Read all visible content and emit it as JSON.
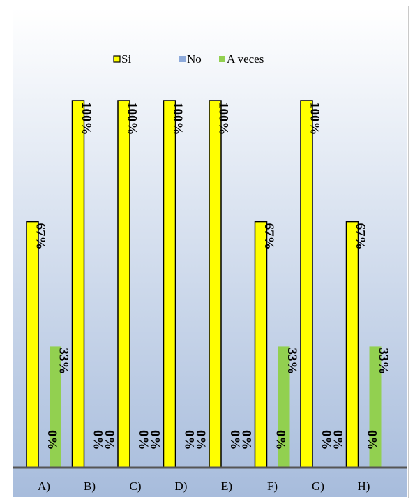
{
  "chart_data": {
    "type": "bar",
    "categories": [
      "A)",
      "B)",
      "C)",
      "D)",
      "E)",
      "F)",
      "G)",
      "H)"
    ],
    "series": [
      {
        "name": "Si",
        "values": [
          67,
          100,
          100,
          100,
          100,
          67,
          100,
          67
        ],
        "color": "#ffff00",
        "stroke": "#000000"
      },
      {
        "name": "No",
        "values": [
          0,
          0,
          0,
          0,
          0,
          0,
          0,
          0
        ],
        "color": "#8eaadb",
        "stroke": "none"
      },
      {
        "name": "A veces",
        "values": [
          33,
          0,
          0,
          0,
          0,
          33,
          0,
          33
        ],
        "color": "#92d050",
        "stroke": "none"
      }
    ],
    "data_labels": [
      [
        "67%",
        "100%",
        "100%",
        "100%",
        "100%",
        "67%",
        "100%",
        "67%"
      ],
      [
        "0%",
        "0%",
        "0%",
        "0%",
        "0%",
        "0%",
        "0%",
        "0%"
      ],
      [
        "33%",
        "0%",
        "0%",
        "0%",
        "0%",
        "33%",
        "0%",
        "33%"
      ]
    ],
    "ylim": [
      0,
      100
    ],
    "legend_position": "top",
    "grid": false,
    "background_gradient": [
      "#ffffff",
      "#a7bcdc"
    ]
  }
}
